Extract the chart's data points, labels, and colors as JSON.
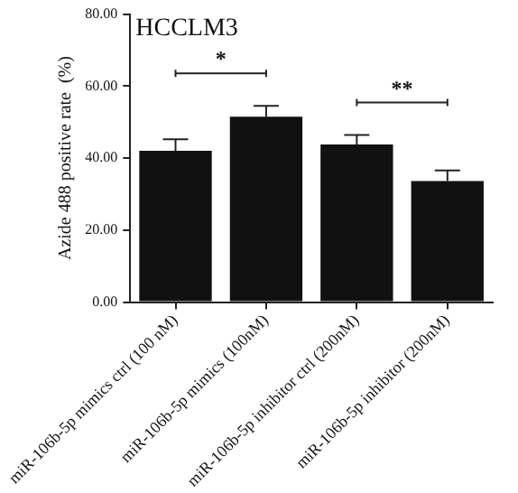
{
  "chart_data": {
    "type": "bar",
    "title": "HCCLM3",
    "ylabel": "Azide 488 positive rate  (%)",
    "categories": [
      "miR-106b-5p mimics ctrl (100 nM)",
      "miR-106b-5p mimics (100nM)",
      "miR-106b-5p inhibitor ctrl (200nM)",
      "miR-106b-5p inhibitor (200nM)"
    ],
    "values": [
      42.0,
      51.5,
      43.8,
      33.6
    ],
    "errors": [
      [
        42.0,
        45.2
      ],
      [
        51.5,
        54.5
      ],
      [
        43.8,
        46.4
      ],
      [
        33.6,
        36.6
      ]
    ],
    "color": "#111111",
    "ylim": [
      0,
      80
    ],
    "yticks": [
      {
        "value": 0,
        "label": "0.00"
      },
      {
        "value": 20,
        "label": "20.00"
      },
      {
        "value": 40,
        "label": "40.00"
      },
      {
        "value": 60,
        "label": "60.00"
      },
      {
        "value": 80,
        "label": "80.00"
      }
    ],
    "annotations": [
      "*",
      "**"
    ],
    "grid": false,
    "legend": false
  }
}
